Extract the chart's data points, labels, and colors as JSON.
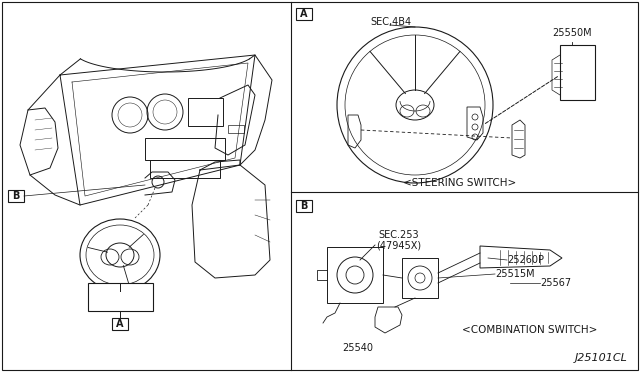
{
  "bg_color": "#ffffff",
  "line_color": "#1a1a1a",
  "text_steering_switch": "<STEERING SWITCH>",
  "text_combination_switch": "<COMBINATION SWITCH>",
  "text_sec4b4": "SEC,4B4",
  "text_25550M": "25550M",
  "text_sec253": "SEC.253",
  "text_47945X": "(47945X)",
  "text_25540": "25540",
  "text_25260P": "25260P",
  "text_25515M": "25515M",
  "text_25567": "25567",
  "text_J25101CL": "J25101CL"
}
